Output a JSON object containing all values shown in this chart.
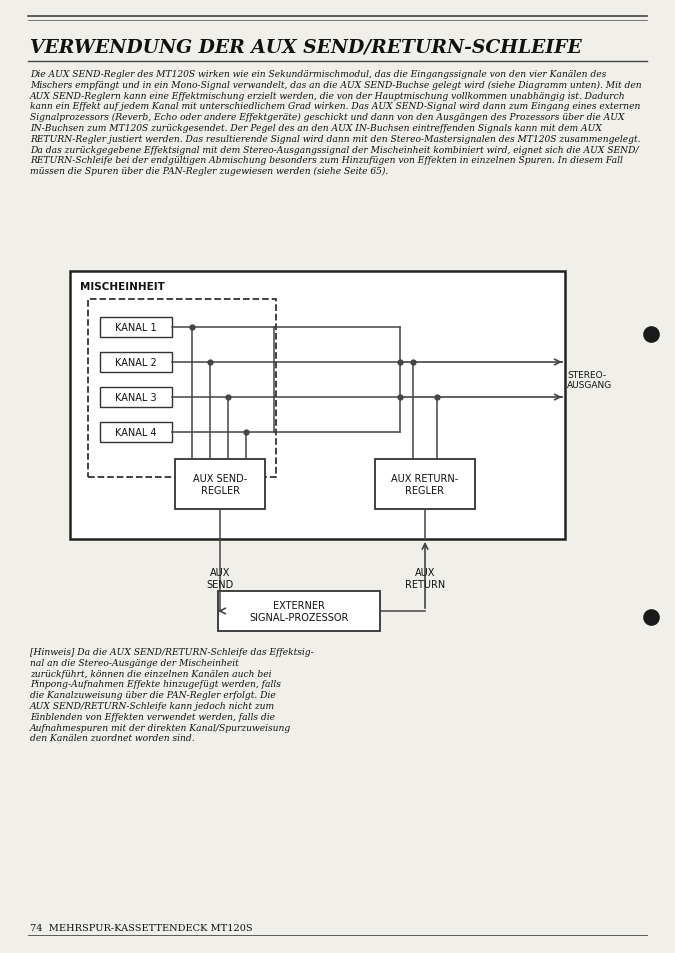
{
  "title": "VERWENDUNG DER AUX SEND/RETURN-SCHLEIFE",
  "body_lines": [
    "Die AUX SEND-Regler des MT120S wirken wie ein Sekundärmischmodul, das die Eingangssignale von den vier Kanälen des",
    "Mischers empfängt und in ein Mono-Signal verwandelt, das an die AUX SEND-Buchse gelegt wird (siehe Diagramm unten). Mit den",
    "AUX SEND-Reglern kann eine Effektmischung erzielt werden, die von der Hauptmischung vollkommen unabhängig ist. Dadurch",
    "kann ein Effekt auf jedem Kanal mit unterschiedlichem Grad wirken. Das AUX SEND-Signal wird dann zum Eingang eines externen",
    "Signalprozessors (Reverb, Echo oder andere Effektgeräte) geschickt und dann von den Ausgängen des Prozessors über die AUX",
    "IN-Buchsen zum MT120S zurückgesendet. Der Pegel des an den AUX IN-Buchsen eintreffenden Signals kann mit dem AUX",
    "RETURN-Regler justiert werden. Das resultierende Signal wird dann mit den Stereo-Mastersignalen des MT120S zusammengelegt.",
    "Da das zurückgegebene Effektsignal mit dem Stereo-Ausgangssignal der Mischeinheit kombiniert wird, eignet sich die AUX SEND/",
    "RETURN-Schleife bei der endgültigen Abmischung besonders zum Hinzufügen von Effekten in einzelnen Spuren. In diesem Fall",
    "müssen die Spuren über die PAN-Regler zugewiesen werden (siehe Seite 65)."
  ],
  "note_lines": [
    "[Hinweis] Da die AUX SEND/RETURN-Schleife das Effektsig-",
    "nal an die Stereo-Ausgänge der Mischeinheit",
    "zurückführt, können die einzelnen Kanälen auch bei",
    "Pinpong-Aufnahmen Effekte hinzugefügt werden, falls",
    "die Kanalzuweisung über die PAN-Regler erfolgt. Die",
    "AUX SEND/RETURN-Schleife kann jedoch nicht zum",
    "Einblenden von Effekten verwendet werden, falls die",
    "Aufnahmespuren mit der direkten Kanal/Spurzuweisung",
    "den Kanälen zuordnet worden sind."
  ],
  "footer": "74  MEHRSPUR-KASSETTENDECK MT120S",
  "bg_color": "#f0efea",
  "line_color": "#444444",
  "text_color": "#111111",
  "ch_labels": [
    "KANAL 1",
    "KANAL 2",
    "KANAL 3",
    "KANAL 4"
  ],
  "label_mischeinheit": "MISCHEINHEIT",
  "label_aux_send_regler": "AUX SEND-\nREGLER",
  "label_aux_return_regler": "AUX RETURN-\nREGLER",
  "label_aux_send": "AUX\nSEND",
  "label_aux_return": "AUX\nRETURN",
  "label_externer": "EXTERNER\nSIGNAL-PROZESSOR",
  "label_stereo": "STEREO-\nAUSGANG"
}
